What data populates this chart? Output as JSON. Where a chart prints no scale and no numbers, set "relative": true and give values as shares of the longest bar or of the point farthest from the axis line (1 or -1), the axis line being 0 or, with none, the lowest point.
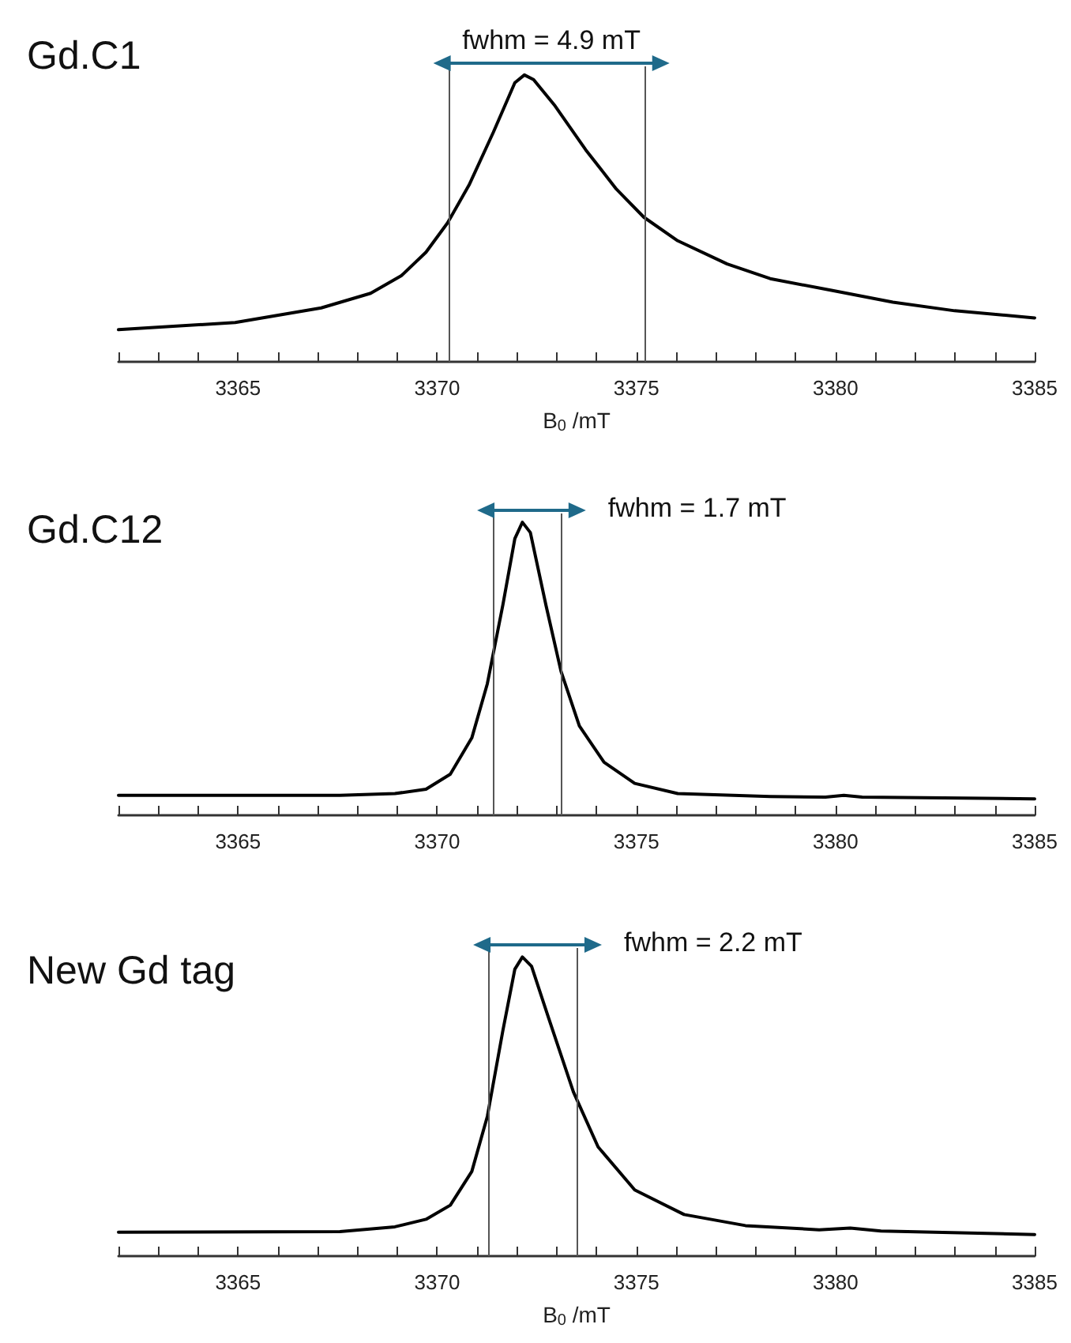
{
  "chart_data": [
    {
      "type": "line",
      "title": "Gd.C1",
      "xlabel": "B$_{0}$ /mT",
      "annotations": [
        "fwhm = 4.9 mT"
      ],
      "relative": true,
      "marker": "none",
      "color": "#000000",
      "x": [
        3362,
        3364.93,
        3367.09,
        3368.33,
        3369.1,
        3369.72,
        3370.26,
        3370.8,
        3371.41,
        3371.95,
        3372.19,
        3372.42,
        3372.96,
        3373.73,
        3374.5,
        3375.19,
        3376.04,
        3377.28,
        3378.36,
        3379.9,
        3381.44,
        3382.99,
        3385
      ],
      "values": [
        0.112,
        0.137,
        0.188,
        0.239,
        0.3,
        0.382,
        0.484,
        0.616,
        0.8,
        0.973,
        1.0,
        0.984,
        0.892,
        0.739,
        0.602,
        0.504,
        0.422,
        0.341,
        0.29,
        0.249,
        0.208,
        0.178,
        0.153
      ],
      "xlim": [
        3362,
        3385
      ],
      "xticks": [
        {
          "value": 3362,
          "label": null
        },
        {
          "value": 3363,
          "label": null
        },
        {
          "value": 3364,
          "label": null
        },
        3365,
        {
          "value": 3366,
          "label": null
        },
        {
          "value": 3367,
          "label": null
        },
        {
          "value": 3368,
          "label": null
        },
        {
          "value": 3369,
          "label": null
        },
        3370,
        {
          "value": 3371,
          "label": null
        },
        {
          "value": 3372,
          "label": null
        },
        {
          "value": 3373,
          "label": null
        },
        {
          "value": 3374,
          "label": null
        },
        3375,
        {
          "value": 3376,
          "label": null
        },
        {
          "value": 3377,
          "label": null
        },
        {
          "value": 3378,
          "label": null
        },
        {
          "value": 3379,
          "label": null
        },
        3380,
        {
          "value": 3381,
          "label": null
        },
        {
          "value": 3382,
          "label": null
        },
        {
          "value": 3383,
          "label": null
        },
        {
          "value": 3384,
          "label": null
        },
        3385
      ],
      "ref_lines": [
        {
          "axis": "x",
          "value": 3370.3,
          "color": "#555555"
        },
        {
          "axis": "x",
          "value": 3375.2,
          "color": "#555555"
        }
      ]
    },
    {
      "type": "line",
      "title": "Gd.C12",
      "annotations": [
        "fwhm = 1.7 mT"
      ],
      "relative": true,
      "marker": "none",
      "color": "#000000",
      "x": [
        3362,
        3367.56,
        3368.94,
        3369.72,
        3370.33,
        3370.87,
        3371.26,
        3371.65,
        3371.95,
        3372.14,
        3372.34,
        3372.73,
        3373.11,
        3373.57,
        3374.19,
        3374.96,
        3376.04,
        3378.36,
        3379.75,
        3380.21,
        3380.67,
        3385
      ],
      "values": [
        0.068,
        0.068,
        0.074,
        0.089,
        0.14,
        0.264,
        0.449,
        0.718,
        0.944,
        1.0,
        0.965,
        0.718,
        0.491,
        0.305,
        0.181,
        0.109,
        0.074,
        0.064,
        0.062,
        0.068,
        0.062,
        0.056
      ],
      "xlim": [
        3362,
        3385
      ],
      "xticks": [
        {
          "value": 3362,
          "label": null
        },
        {
          "value": 3363,
          "label": null
        },
        {
          "value": 3364,
          "label": null
        },
        3365,
        {
          "value": 3366,
          "label": null
        },
        {
          "value": 3367,
          "label": null
        },
        {
          "value": 3368,
          "label": null
        },
        {
          "value": 3369,
          "label": null
        },
        3370,
        {
          "value": 3371,
          "label": null
        },
        {
          "value": 3372,
          "label": null
        },
        {
          "value": 3373,
          "label": null
        },
        {
          "value": 3374,
          "label": null
        },
        3375,
        {
          "value": 3376,
          "label": null
        },
        {
          "value": 3377,
          "label": null
        },
        {
          "value": 3378,
          "label": null
        },
        {
          "value": 3379,
          "label": null
        },
        3380,
        {
          "value": 3381,
          "label": null
        },
        {
          "value": 3382,
          "label": null
        },
        {
          "value": 3383,
          "label": null
        },
        {
          "value": 3384,
          "label": null
        },
        3385
      ],
      "ref_lines": [
        {
          "axis": "x",
          "value": 3371.4,
          "color": "#555555"
        },
        {
          "axis": "x",
          "value": 3373.1,
          "color": "#555555"
        }
      ]
    },
    {
      "type": "line",
      "title": "New Gd tag",
      "xlabel": "B$_{0}$ /mT",
      "annotations": [
        "fwhm = 2.2 mT"
      ],
      "relative": true,
      "marker": "none",
      "color": "#000000",
      "x": [
        3362,
        3367.56,
        3368.94,
        3369.72,
        3370.33,
        3370.87,
        3371.26,
        3371.65,
        3371.95,
        3372.14,
        3372.37,
        3372.8,
        3373.42,
        3374.04,
        3374.96,
        3376.2,
        3377.74,
        3379.59,
        3380.37,
        3381.14,
        3385
      ],
      "values": [
        0.08,
        0.082,
        0.098,
        0.123,
        0.17,
        0.283,
        0.467,
        0.754,
        0.959,
        1.0,
        0.969,
        0.795,
        0.549,
        0.365,
        0.221,
        0.139,
        0.102,
        0.088,
        0.094,
        0.084,
        0.072
      ],
      "xlim": [
        3362,
        3385
      ],
      "xticks": [
        {
          "value": 3362,
          "label": null
        },
        {
          "value": 3363,
          "label": null
        },
        {
          "value": 3364,
          "label": null
        },
        3365,
        {
          "value": 3366,
          "label": null
        },
        {
          "value": 3367,
          "label": null
        },
        {
          "value": 3368,
          "label": null
        },
        {
          "value": 3369,
          "label": null
        },
        3370,
        {
          "value": 3371,
          "label": null
        },
        {
          "value": 3372,
          "label": null
        },
        {
          "value": 3373,
          "label": null
        },
        {
          "value": 3374,
          "label": null
        },
        3375,
        {
          "value": 3376,
          "label": null
        },
        {
          "value": 3377,
          "label": null
        },
        {
          "value": 3378,
          "label": null
        },
        {
          "value": 3379,
          "label": null
        },
        3380,
        {
          "value": 3381,
          "label": null
        },
        {
          "value": 3382,
          "label": null
        },
        {
          "value": 3383,
          "label": null
        },
        {
          "value": 3384,
          "label": null
        },
        3385
      ],
      "ref_lines": [
        {
          "axis": "x",
          "value": 3371.3,
          "color": "#555555"
        },
        {
          "axis": "x",
          "value": 3373.5,
          "color": "#555555"
        }
      ]
    }
  ]
}
